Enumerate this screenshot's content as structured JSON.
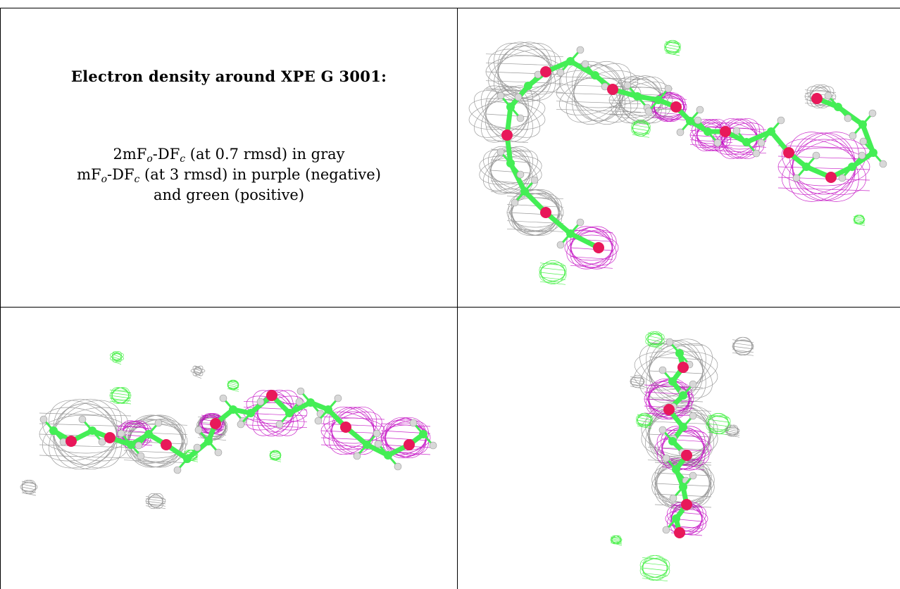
{
  "caption": {
    "title": "Electron density around XPE G 3001:",
    "line1": {
      "pre": "2mF",
      "sub1": "o",
      "mid": "-DF",
      "sub2": "c",
      "post": " (at 0.7 rmsd) in gray"
    },
    "line2": {
      "pre": "mF",
      "sub1": "o",
      "mid": "-DF",
      "sub2": "c",
      "post": " (at 3 rmsd) in purple (negative)"
    },
    "line3": "and green (positive)"
  },
  "colors": {
    "gray_mesh": "#8a8a8a",
    "purple_mesh": "#c000c0",
    "green_mesh": "#33ee33",
    "carbon": "#44ee55",
    "oxygen": "#e8185a",
    "hydrogen": "#d8d8d8"
  },
  "panels": [
    {
      "name": "view-top-right",
      "icon": "molecule-density-view"
    },
    {
      "name": "view-bottom-left",
      "icon": "molecule-density-view"
    },
    {
      "name": "view-bottom-right",
      "icon": "molecule-density-view"
    }
  ]
}
